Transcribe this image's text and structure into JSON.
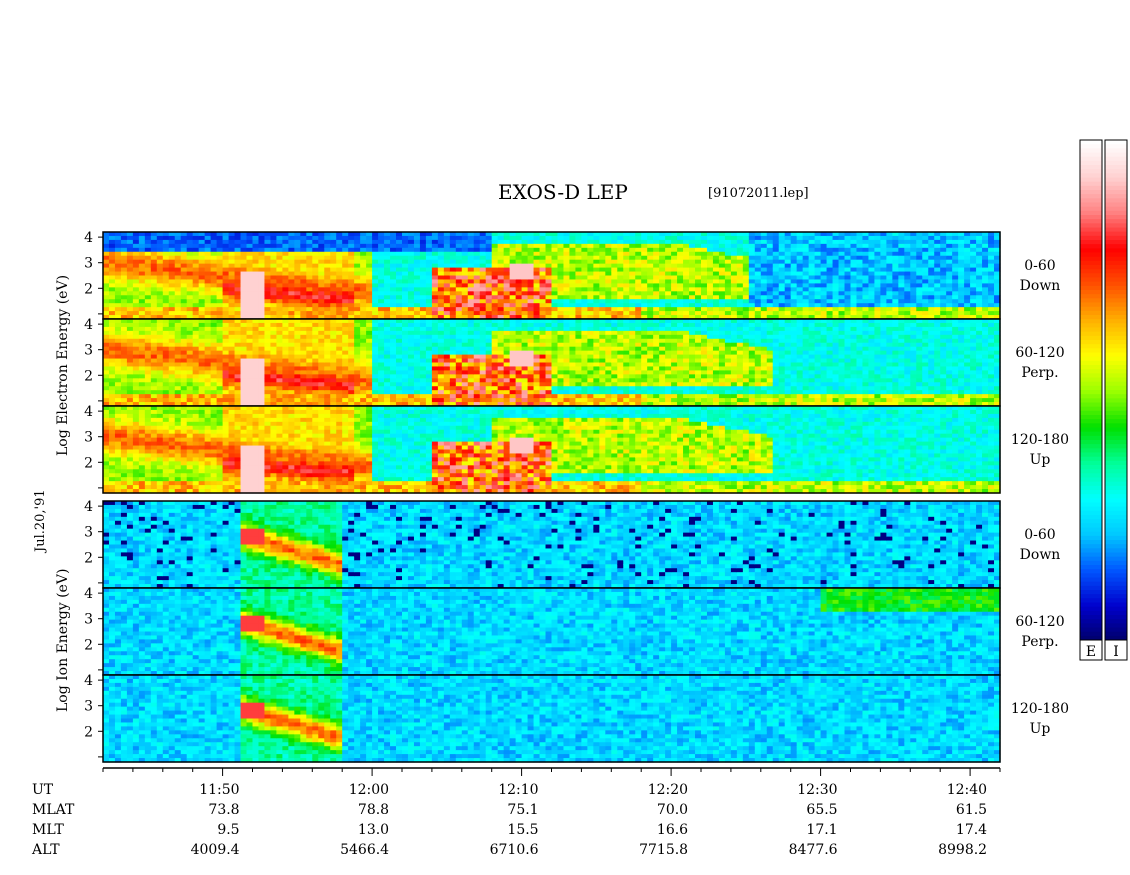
{
  "title": "EXOS-D LEP",
  "file": "[91072011.lep]",
  "date": "Jul.20,'91",
  "electron_axis_label": [
    "Log",
    "Electron",
    "Energy",
    "(eV)"
  ],
  "ion_axis_label": [
    "Log",
    "Ion",
    "Energy",
    "(eV)"
  ],
  "colorbar_labels": [
    "E",
    "I"
  ],
  "chart_data": {
    "type": "heatmap",
    "title": "EXOS-D LEP",
    "x_label": "UT",
    "x_range_ut": [
      "11:42",
      "12:42"
    ],
    "y_ticks": [
      "1",
      "2",
      "3",
      "4"
    ],
    "y_scale": "log10 energy (eV)",
    "panels": [
      {
        "species": "Electron",
        "label": [
          "0-60",
          "Down"
        ]
      },
      {
        "species": "Electron",
        "label": [
          "60-120",
          "Perp."
        ]
      },
      {
        "species": "Electron",
        "label": [
          "120-180",
          "Up"
        ]
      },
      {
        "species": "Ion",
        "label": [
          "0-60",
          "Down"
        ]
      },
      {
        "species": "Ion",
        "label": [
          "60-120",
          "Perp."
        ]
      },
      {
        "species": "Ion",
        "label": [
          "120-180",
          "Up"
        ]
      }
    ],
    "ephemeris_rows": [
      "UT",
      "MLAT",
      "MLT",
      "ALT"
    ],
    "ephemeris": [
      {
        "UT": "11:50",
        "MLAT": "73.8",
        "MLT": "9.5",
        "ALT": "4009.4"
      },
      {
        "UT": "12:00",
        "MLAT": "78.8",
        "MLT": "13.0",
        "ALT": "5466.4"
      },
      {
        "UT": "12:10",
        "MLAT": "75.1",
        "MLT": "15.5",
        "ALT": "6710.6"
      },
      {
        "UT": "12:20",
        "MLAT": "70.0",
        "MLT": "16.6",
        "ALT": "7715.8"
      },
      {
        "UT": "12:30",
        "MLAT": "65.5",
        "MLT": "17.1",
        "ALT": "8477.6"
      },
      {
        "UT": "12:40",
        "MLAT": "61.5",
        "MLT": "17.4",
        "ALT": "8998.2"
      }
    ],
    "colormap": [
      "#000066",
      "#0000cc",
      "#0055ff",
      "#00c8ff",
      "#00ffff",
      "#00ff99",
      "#00e000",
      "#99ff00",
      "#ffff00",
      "#ffb000",
      "#ff5000",
      "#ff0000",
      "#ff8080",
      "#ffd0d0",
      "#ffffff"
    ]
  }
}
